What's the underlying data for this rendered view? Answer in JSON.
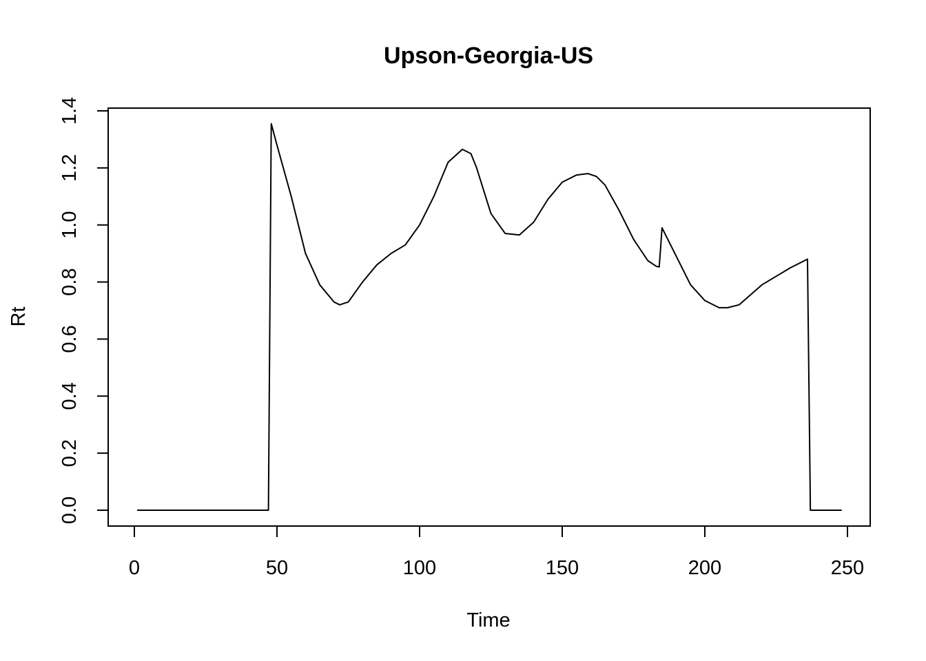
{
  "chart_data": {
    "type": "line",
    "title": "Upson-Georgia-US",
    "xlabel": "Time",
    "ylabel": "Rt",
    "xlim": [
      0,
      250
    ],
    "ylim": [
      0,
      1.4
    ],
    "x_ticks": [
      0,
      50,
      100,
      150,
      200,
      250
    ],
    "y_ticks": [
      0.0,
      0.2,
      0.4,
      0.6,
      0.8,
      1.0,
      1.2,
      1.4
    ],
    "x_tick_labels": [
      "0",
      "50",
      "100",
      "150",
      "200",
      "250"
    ],
    "y_tick_labels": [
      "0.0",
      "0.2",
      "0.4",
      "0.6",
      "0.8",
      "1.0",
      "1.2",
      "1.4"
    ],
    "grid": false,
    "series": [
      {
        "x": [
          1,
          47,
          48,
          50,
          55,
          60,
          65,
          70,
          72,
          75,
          80,
          85,
          90,
          95,
          100,
          105,
          110,
          115,
          118,
          120,
          125,
          130,
          135,
          140,
          145,
          150,
          155,
          159,
          162,
          165,
          170,
          175,
          180,
          183,
          184,
          185,
          190,
          195,
          200,
          205,
          208,
          212,
          220,
          225,
          230,
          236,
          237,
          248
        ],
        "y": [
          0.0,
          0.0,
          1.355,
          1.28,
          1.1,
          0.9,
          0.79,
          0.73,
          0.72,
          0.73,
          0.8,
          0.86,
          0.9,
          0.93,
          1.0,
          1.1,
          1.22,
          1.265,
          1.25,
          1.2,
          1.04,
          0.97,
          0.965,
          1.01,
          1.09,
          1.15,
          1.175,
          1.18,
          1.17,
          1.14,
          1.05,
          0.95,
          0.875,
          0.855,
          0.853,
          0.99,
          0.89,
          0.79,
          0.735,
          0.71,
          0.71,
          0.72,
          0.79,
          0.82,
          0.85,
          0.88,
          0.0,
          0.0
        ]
      }
    ]
  }
}
